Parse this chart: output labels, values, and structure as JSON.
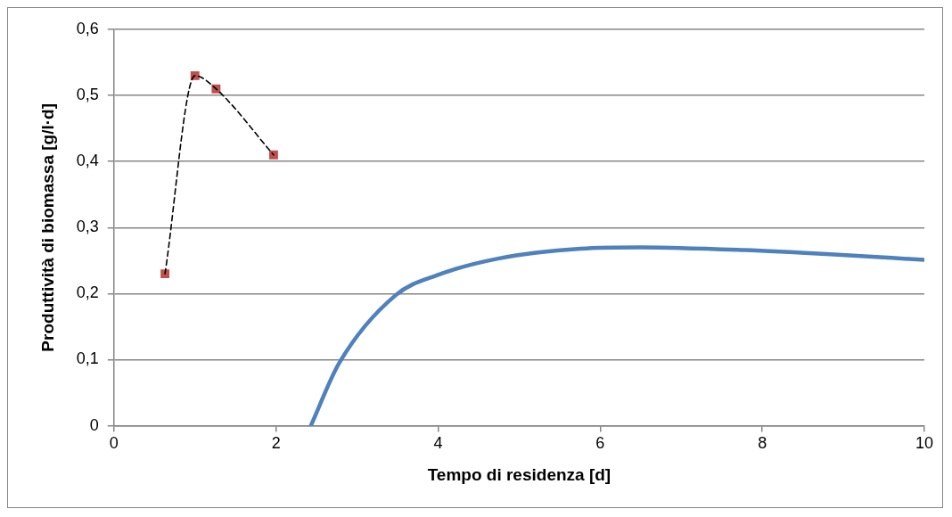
{
  "chart_data": {
    "type": "scatter",
    "xlabel": "Tempo di residenza [d]",
    "ylabel": "Produttività di biomassa [g/l·d]",
    "xlim": [
      0,
      10
    ],
    "ylim": [
      0,
      0.6
    ],
    "xticks": [
      0,
      2,
      4,
      6,
      8,
      10
    ],
    "yticks": [
      {
        "value": 0,
        "label": "0"
      },
      {
        "value": 0.1,
        "label": "0,1"
      },
      {
        "value": 0.2,
        "label": "0,2"
      },
      {
        "value": 0.3,
        "label": "0,3"
      },
      {
        "value": 0.4,
        "label": "0,4"
      },
      {
        "value": 0.5,
        "label": "0,5"
      },
      {
        "value": 0.6,
        "label": "0,6"
      }
    ],
    "grid": "y",
    "legend": false,
    "series": [
      {
        "type": "line",
        "color": "#000000",
        "line_style": "dashed",
        "marker": "none",
        "x": [
          0.63,
          1.0,
          1.26,
          1.97
        ],
        "values": [
          0.23,
          0.53,
          0.51,
          0.41
        ]
      },
      {
        "type": "scatter",
        "color": "#c0504d",
        "marker": "square",
        "x": [
          0.63,
          1.0,
          1.26,
          1.97
        ],
        "values": [
          0.23,
          0.53,
          0.51,
          0.41
        ]
      },
      {
        "type": "line",
        "color": "#4f81bd",
        "line_style": "solid",
        "marker": "none",
        "x": [
          2.43,
          2.78,
          3.48,
          3.99,
          4.74,
          5.76,
          6.51,
          7.78,
          8.79,
          10.0
        ],
        "values": [
          0,
          0.095,
          0.198,
          0.228,
          0.253,
          0.268,
          0.27,
          0.266,
          0.26,
          0.251
        ]
      }
    ]
  }
}
